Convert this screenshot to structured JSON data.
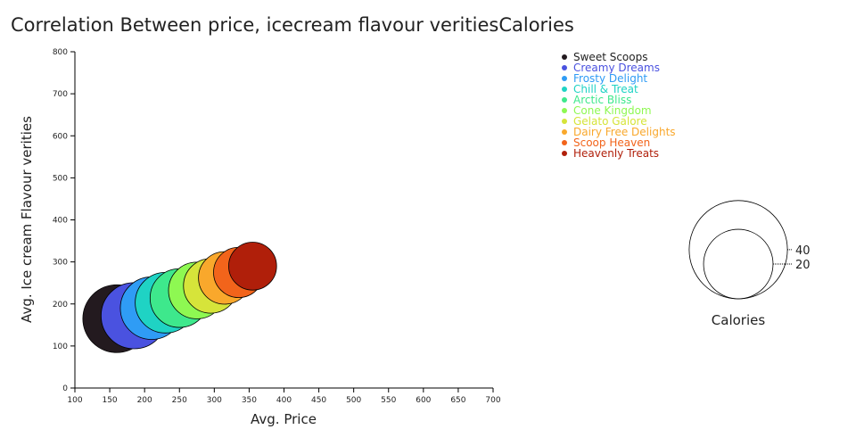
{
  "chart_data": {
    "type": "scatter",
    "title": "Correlation Between price, icecream flavour veritiesCalories",
    "xlabel": "Avg. Price",
    "ylabel": "Avg. Ice cream Flavour verities",
    "xlim": [
      100,
      700
    ],
    "ylim": [
      0,
      800
    ],
    "x_ticks": [
      100,
      150,
      200,
      250,
      300,
      350,
      400,
      450,
      500,
      550,
      600,
      650,
      700
    ],
    "y_ticks": [
      0,
      100,
      200,
      300,
      400,
      500,
      600,
      700,
      800
    ],
    "size_legend": {
      "title": "Calories",
      "values": [
        40,
        20
      ]
    },
    "series": [
      {
        "name": "Sweet Scoops",
        "x": 160,
        "y": 165,
        "size": 40,
        "color": "#231a1f"
      },
      {
        "name": "Creamy Dreams",
        "x": 185,
        "y": 172,
        "size": 38,
        "color": "#4a52e0"
      },
      {
        "name": "Frosty Delight",
        "x": 210,
        "y": 190,
        "size": 34,
        "color": "#2f9cf5"
      },
      {
        "name": "Chill & Treat",
        "x": 230,
        "y": 203,
        "size": 32,
        "color": "#1fd3c4"
      },
      {
        "name": "Arctic Bliss",
        "x": 250,
        "y": 214,
        "size": 30,
        "color": "#3ee88c"
      },
      {
        "name": "Cone Kingdom",
        "x": 275,
        "y": 232,
        "size": 28,
        "color": "#8ef852"
      },
      {
        "name": "Gelato Galore",
        "x": 295,
        "y": 243,
        "size": 26,
        "color": "#d6e43a"
      },
      {
        "name": "Dairy Free Delights",
        "x": 315,
        "y": 262,
        "size": 24,
        "color": "#f9a82c"
      },
      {
        "name": "Scoop Heaven",
        "x": 335,
        "y": 275,
        "size": 22,
        "color": "#f2641b"
      },
      {
        "name": "Heavenly Treats",
        "x": 355,
        "y": 290,
        "size": 20,
        "color": "#b01f0a"
      }
    ]
  }
}
